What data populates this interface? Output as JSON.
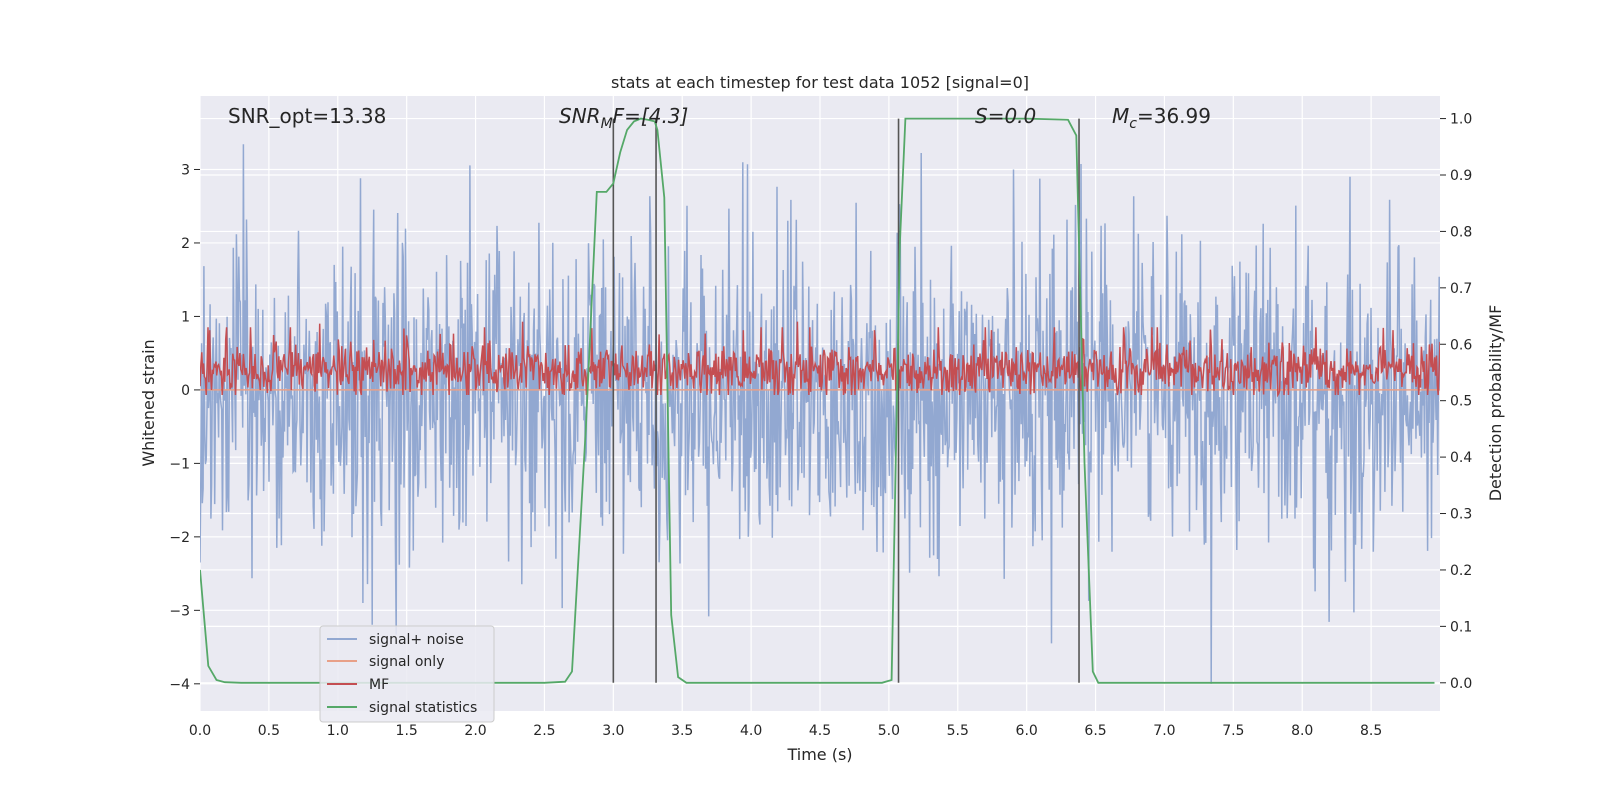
{
  "chart_data": {
    "type": "line",
    "title": "stats at each timestep for test data 1052 [signal=0]",
    "xlabel": "Time (s)",
    "ylabel": "Whitened strain",
    "ylabel_right": "Detection probability/MF",
    "xlim": [
      0.0,
      9.0
    ],
    "ylim": [
      -4.37,
      4.0
    ],
    "ylim_right": [
      -0.05,
      1.04
    ],
    "x_ticks": [
      0.0,
      0.5,
      1.0,
      1.5,
      2.0,
      2.5,
      3.0,
      3.5,
      4.0,
      4.5,
      5.0,
      5.5,
      6.0,
      6.5,
      7.0,
      7.5,
      8.0,
      8.5
    ],
    "x_tick_labels": [
      "0.0",
      "0.5",
      "1.0",
      "1.5",
      "2.0",
      "2.5",
      "3.0",
      "3.5",
      "4.0",
      "4.5",
      "5.0",
      "5.5",
      "6.0",
      "6.5",
      "7.0",
      "7.5",
      "8.0",
      "8.5"
    ],
    "y_ticks": [
      -4,
      -3,
      -2,
      -1,
      0,
      1,
      2,
      3
    ],
    "y_tick_labels": [
      "−4",
      "−3",
      "−2",
      "−1",
      "0",
      "1",
      "2",
      "3"
    ],
    "y_right_ticks": [
      0.0,
      0.1,
      0.2,
      0.3,
      0.4,
      0.5,
      0.6,
      0.7,
      0.8,
      0.9,
      1.0
    ],
    "y_right_tick_labels": [
      "0.0",
      "0.1",
      "0.2",
      "0.3",
      "0.4",
      "0.5",
      "0.6",
      "0.7",
      "0.8",
      "0.9",
      "1.0"
    ],
    "grid": true,
    "legend_position": "lower-left",
    "legend": [
      {
        "label": "signal+ noise",
        "color": "#92a8d1"
      },
      {
        "label": "signal only",
        "color": "#e8a088"
      },
      {
        "label": "MF",
        "color": "#c44e52"
      },
      {
        "label": "signal statistics",
        "color": "#55a868"
      }
    ],
    "annotations": {
      "snr_opt": "SNR_opt=13.38",
      "snr_mf_base": "SNR",
      "snr_mf_sub": "M",
      "snr_mf_rest": "F=[4.3]",
      "s_stat": "S=0.0",
      "mc_base": "M",
      "mc_sub": "c",
      "mc_rest": "=36.99"
    },
    "vertical_lines_x": [
      3.0,
      3.31,
      5.07,
      6.38
    ],
    "series": [
      {
        "name": "signal+ noise",
        "axis": "left",
        "color": "#92a8d1",
        "noise_envelope": {
          "typical_upper": 1.7,
          "typical_lower": -1.7,
          "peak_upper": 3.4,
          "peak_lower": -4.0
        }
      },
      {
        "name": "signal only",
        "axis": "left",
        "color": "#e8a088",
        "x": [
          0.0,
          9.0
        ],
        "y": [
          0.0,
          0.0
        ]
      },
      {
        "name": "MF",
        "axis": "right",
        "color": "#c44e52",
        "baseline": 0.555,
        "spread": 0.04,
        "peaks": [
          0.63,
          0.64,
          0.63,
          0.625,
          0.63
        ]
      },
      {
        "name": "signal statistics",
        "axis": "right",
        "color": "#55a868",
        "x": [
          0.0,
          0.06,
          0.12,
          0.18,
          0.3,
          0.5,
          1.0,
          1.5,
          2.0,
          2.5,
          2.65,
          2.7,
          2.8,
          2.88,
          2.95,
          3.0,
          3.05,
          3.1,
          3.15,
          3.2,
          3.25,
          3.3,
          3.32,
          3.37,
          3.42,
          3.47,
          3.53,
          4.0,
          4.5,
          4.95,
          5.02,
          5.08,
          5.12,
          5.5,
          6.0,
          6.3,
          6.36,
          6.42,
          6.48,
          6.52,
          7.0,
          7.5,
          8.0,
          8.5,
          8.96
        ],
        "y": [
          0.2,
          0.03,
          0.005,
          0.001,
          0.0,
          0.0,
          0.0,
          0.0,
          0.0,
          0.0,
          0.002,
          0.02,
          0.45,
          0.87,
          0.87,
          0.885,
          0.94,
          0.98,
          0.995,
          1.0,
          0.998,
          0.995,
          0.98,
          0.86,
          0.12,
          0.01,
          0.0,
          0.0,
          0.0,
          0.0,
          0.005,
          0.78,
          1.0,
          1.0,
          1.0,
          0.998,
          0.97,
          0.39,
          0.02,
          0.0,
          0.0,
          0.0,
          0.0,
          0.0,
          0.0
        ]
      }
    ]
  }
}
